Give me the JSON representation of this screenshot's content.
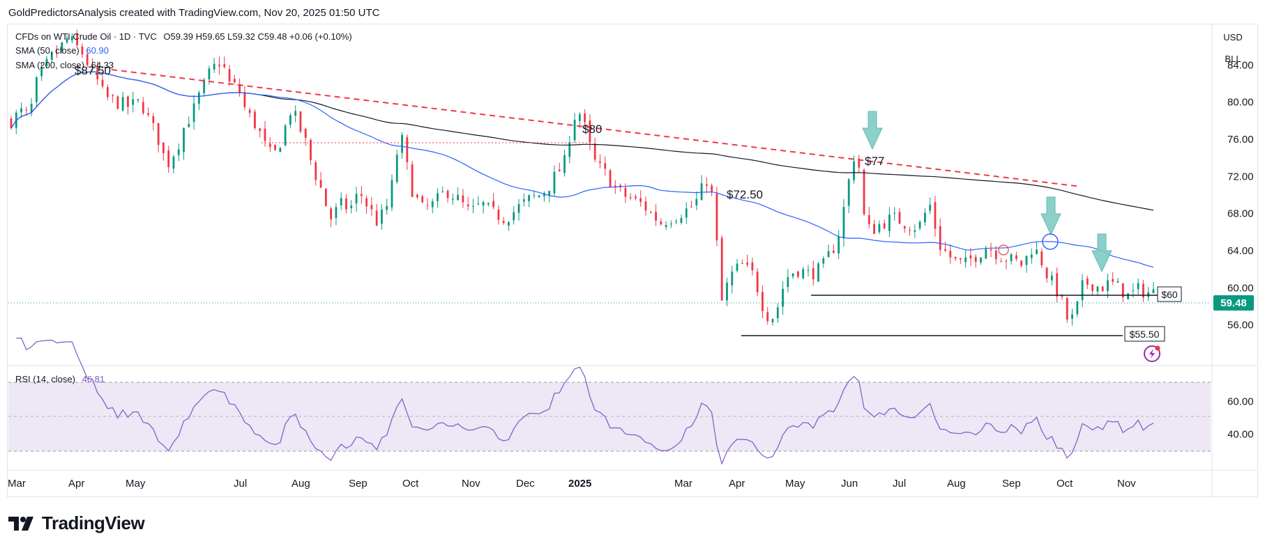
{
  "header": {
    "attribution": "GoldPredictorsAnalysis created with TradingView.com, Nov 20, 2025 01:50 UTC"
  },
  "legend": {
    "symbol": "CFDs on WTI Crude Oil · 1D · TVC",
    "ohlc": "O59.39  H59.65  L59.32  C59.48  +0.06 (+0.10%)",
    "sma50_label": "SMA (50, close)",
    "sma50_value": "60.90",
    "sma200_label": "SMA (200, close)",
    "sma200_value": "64.33",
    "rsi_label": "RSI (14, close)",
    "rsi_value": "46.81"
  },
  "currency": {
    "unit": "USD",
    "sub": "BLL"
  },
  "current_price_label": "59.48",
  "annotations": {
    "a1": "$87.50",
    "a2": "$80",
    "a3": "$72.50",
    "a4": "$77",
    "a5": "$60",
    "a6": "$55.50"
  },
  "brand": {
    "name": "TradingView"
  },
  "colors": {
    "sma50": "#2962ff",
    "sma200": "#131722",
    "up": "#089981",
    "down": "#f23645",
    "trendline": "#f23645",
    "rsi": "#7e57c2",
    "rsi_band": "#ede7f6",
    "arrow": "#80cbc4"
  },
  "chart_data": [
    {
      "type": "candlestick",
      "title": "CFDs on WTI Crude Oil · 1D · TVC",
      "x_tick_labels": [
        "Mar",
        "Apr",
        "May",
        "Jul",
        "Aug",
        "Sep",
        "Oct",
        "Nov",
        "Dec",
        "2025",
        "Mar",
        "Apr",
        "May",
        "Jun",
        "Jul",
        "Aug",
        "Sep",
        "Oct",
        "Nov"
      ],
      "y_tick_labels": [
        "84.00",
        "80.00",
        "76.00",
        "72.00",
        "68.00",
        "64.00",
        "60.00",
        "56.00"
      ],
      "ylim": [
        52,
        88
      ],
      "price_path": [
        [
          0,
          78.0
        ],
        [
          8,
          79.0
        ],
        [
          15,
          78.5
        ],
        [
          22,
          82.0
        ],
        [
          32,
          84.5
        ],
        [
          40,
          85.5
        ],
        [
          48,
          87.0
        ],
        [
          55,
          86.0
        ],
        [
          62,
          85.0
        ],
        [
          70,
          83.0
        ],
        [
          80,
          80.5
        ],
        [
          90,
          80.0
        ],
        [
          100,
          79.5
        ],
        [
          110,
          80.0
        ],
        [
          118,
          78.0
        ],
        [
          125,
          76.0
        ],
        [
          132,
          73.0
        ],
        [
          140,
          75.0
        ],
        [
          148,
          77.5
        ],
        [
          158,
          80.0
        ],
        [
          168,
          83.0
        ],
        [
          178,
          84.5
        ],
        [
          186,
          82.0
        ],
        [
          193,
          81.5
        ],
        [
          200,
          79.0
        ],
        [
          208,
          77.5
        ],
        [
          215,
          75.5
        ],
        [
          222,
          74.0
        ],
        [
          230,
          76.0
        ],
        [
          238,
          79.5
        ],
        [
          246,
          77.0
        ],
        [
          252,
          75.0
        ],
        [
          258,
          72.5
        ],
        [
          265,
          70.0
        ],
        [
          272,
          67.5
        ],
        [
          280,
          69.0
        ],
        [
          288,
          68.5
        ],
        [
          296,
          70.5
        ],
        [
          304,
          68.5
        ],
        [
          312,
          67.0
        ],
        [
          320,
          69.0
        ],
        [
          326,
          72.0
        ],
        [
          330,
          77.0
        ],
        [
          336,
          73.5
        ],
        [
          342,
          70.0
        ],
        [
          350,
          68.5
        ],
        [
          360,
          69.0
        ],
        [
          370,
          70.5
        ],
        [
          380,
          69.5
        ],
        [
          390,
          68.0
        ],
        [
          400,
          69.0
        ],
        [
          410,
          68.0
        ],
        [
          420,
          67.5
        ],
        [
          430,
          68.5
        ],
        [
          440,
          69.5
        ],
        [
          450,
          70.0
        ],
        [
          460,
          71.5
        ],
        [
          470,
          73.5
        ],
        [
          476,
          77.0
        ],
        [
          480,
          79.0
        ],
        [
          486,
          78.5
        ],
        [
          490,
          76.0
        ],
        [
          496,
          73.5
        ],
        [
          504,
          72.5
        ],
        [
          512,
          71.0
        ],
        [
          520,
          70.0
        ],
        [
          528,
          69.5
        ],
        [
          536,
          69.0
        ],
        [
          544,
          68.0
        ],
        [
          552,
          67.0
        ],
        [
          560,
          67.5
        ],
        [
          568,
          68.0
        ],
        [
          576,
          68.5
        ],
        [
          584,
          69.5
        ],
        [
          590,
          71.5
        ],
        [
          594,
          72.0
        ],
        [
          598,
          68.0
        ],
        [
          601,
          63.0
        ],
        [
          604,
          58.5
        ],
        [
          610,
          61.0
        ],
        [
          620,
          62.5
        ],
        [
          630,
          61.5
        ],
        [
          638,
          58.5
        ],
        [
          645,
          56.5
        ],
        [
          652,
          58.0
        ],
        [
          658,
          61.0
        ],
        [
          668,
          62.0
        ],
        [
          678,
          61.5
        ],
        [
          688,
          62.0
        ],
        [
          698,
          64.0
        ],
        [
          706,
          67.0
        ],
        [
          712,
          71.5
        ],
        [
          718,
          75.5
        ],
        [
          721,
          73.0
        ],
        [
          724,
          68.0
        ],
        [
          730,
          66.0
        ],
        [
          740,
          67.0
        ],
        [
          750,
          67.5
        ],
        [
          760,
          67.0
        ],
        [
          770,
          66.5
        ],
        [
          776,
          67.5
        ],
        [
          780,
          69.5
        ],
        [
          784,
          67.0
        ],
        [
          790,
          64.5
        ],
        [
          800,
          63.0
        ],
        [
          810,
          62.5
        ],
        [
          820,
          63.5
        ],
        [
          830,
          64.5
        ],
        [
          840,
          63.5
        ],
        [
          850,
          63.0
        ],
        [
          860,
          62.5
        ],
        [
          868,
          64.5
        ],
        [
          874,
          63.5
        ],
        [
          880,
          61.5
        ],
        [
          888,
          60.0
        ],
        [
          894,
          58.0
        ],
        [
          900,
          56.0
        ],
        [
          906,
          58.0
        ],
        [
          912,
          60.5
        ],
        [
          918,
          60.5
        ],
        [
          926,
          60.0
        ],
        [
          934,
          60.5
        ],
        [
          942,
          60.0
        ],
        [
          950,
          59.0
        ],
        [
          958,
          59.8
        ],
        [
          966,
          59.5
        ],
        [
          972,
          59.48
        ]
      ],
      "annotations": [
        "$87.50",
        "$80",
        "$72.50",
        "$77",
        "$60",
        "$55.50"
      ],
      "current_price": 59.48
    },
    {
      "type": "line",
      "title": "RSI (14, close)",
      "y_tick_labels": [
        "60.00",
        "40.00"
      ],
      "ylim": [
        20,
        80
      ],
      "bands": [
        30,
        50,
        70
      ],
      "last_value": 46.81
    }
  ]
}
